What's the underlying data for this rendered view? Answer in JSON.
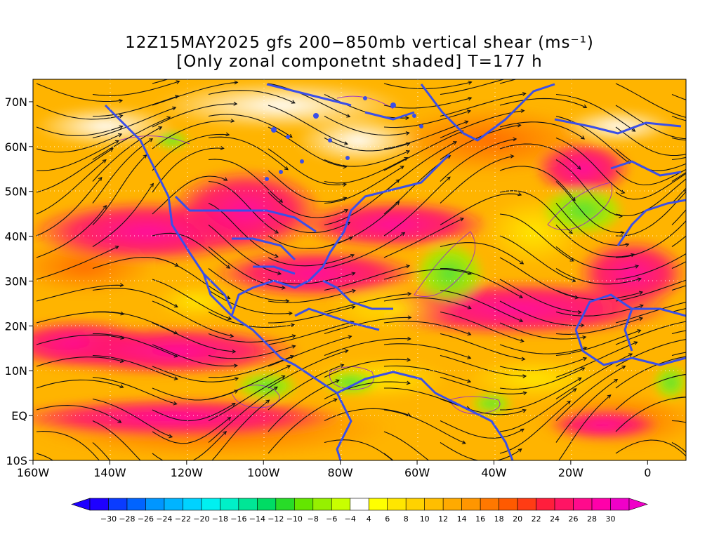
{
  "title": {
    "line1": "12Z15MAY2025 gfs 200−850mb vertical shear (ms⁻¹)",
    "line2": "[Only zonal componetnt shaded] T=177 h"
  },
  "map": {
    "lon_range": [
      -160,
      10
    ],
    "lat_range": [
      -10,
      75
    ],
    "lat_ticks": [
      {
        "value": 70,
        "label": "70N"
      },
      {
        "value": 60,
        "label": "60N"
      },
      {
        "value": 50,
        "label": "50N"
      },
      {
        "value": 40,
        "label": "40N"
      },
      {
        "value": 30,
        "label": "30N"
      },
      {
        "value": 20,
        "label": "20N"
      },
      {
        "value": 10,
        "label": "10N"
      },
      {
        "value": 0,
        "label": "EQ"
      },
      {
        "value": -10,
        "label": "10S"
      }
    ],
    "lon_ticks": [
      {
        "value": -160,
        "label": "160W"
      },
      {
        "value": -140,
        "label": "140W"
      },
      {
        "value": -120,
        "label": "120W"
      },
      {
        "value": -100,
        "label": "100W"
      },
      {
        "value": -80,
        "label": "80W"
      },
      {
        "value": -60,
        "label": "60W"
      },
      {
        "value": -40,
        "label": "40W"
      },
      {
        "value": -20,
        "label": "20W"
      },
      {
        "value": 0,
        "label": "0"
      }
    ],
    "coastline_color": "#3a4fe8",
    "streamline_color": "#111111",
    "contour_color": "#9b30c8"
  },
  "colorbar": {
    "labels": [
      "−30",
      "−28",
      "−26",
      "−24",
      "−22",
      "−20",
      "−18",
      "−16",
      "−14",
      "−12",
      "−10",
      "−8",
      "−6",
      "−4",
      "4",
      "6",
      "8",
      "10",
      "12",
      "14",
      "16",
      "18",
      "20",
      "22",
      "24",
      "26",
      "28",
      "30"
    ],
    "colors": [
      "#1e00ff",
      "#0a3cff",
      "#0064ff",
      "#0096ff",
      "#00b4ff",
      "#00d2ff",
      "#00f0f0",
      "#00f0c8",
      "#00e696",
      "#00dc64",
      "#28dc28",
      "#64e600",
      "#96f000",
      "#c8ff00",
      "#ffffff",
      "#ffff00",
      "#ffe600",
      "#ffd200",
      "#ffbe00",
      "#ffaa00",
      "#ff9600",
      "#ff7800",
      "#ff5a00",
      "#ff3c14",
      "#ff1e3c",
      "#ff1464",
      "#ff0a8c",
      "#ff00aa",
      "#f000c8"
    ]
  }
}
